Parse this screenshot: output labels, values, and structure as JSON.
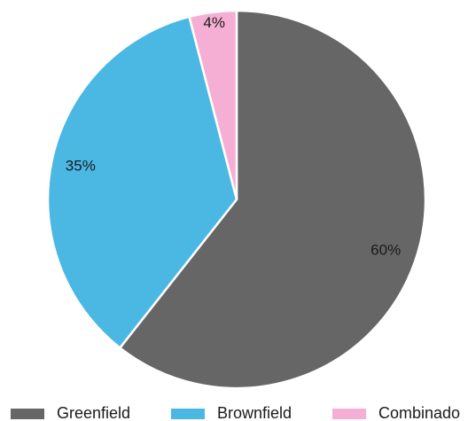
{
  "chart_data": {
    "type": "pie",
    "categories": [
      "Greenfield",
      "Brownfield",
      "Combinado"
    ],
    "values": [
      60,
      35,
      4
    ],
    "data_labels": [
      "60%",
      "35%",
      "4%"
    ],
    "colors": [
      "#666666",
      "#4bb8e4",
      "#f6afd4"
    ],
    "start": "12 o'clock",
    "direction": "clockwise",
    "legend": {
      "position": "bottom",
      "entries": [
        "Greenfield",
        "Brownfield",
        "Combinado"
      ]
    }
  }
}
